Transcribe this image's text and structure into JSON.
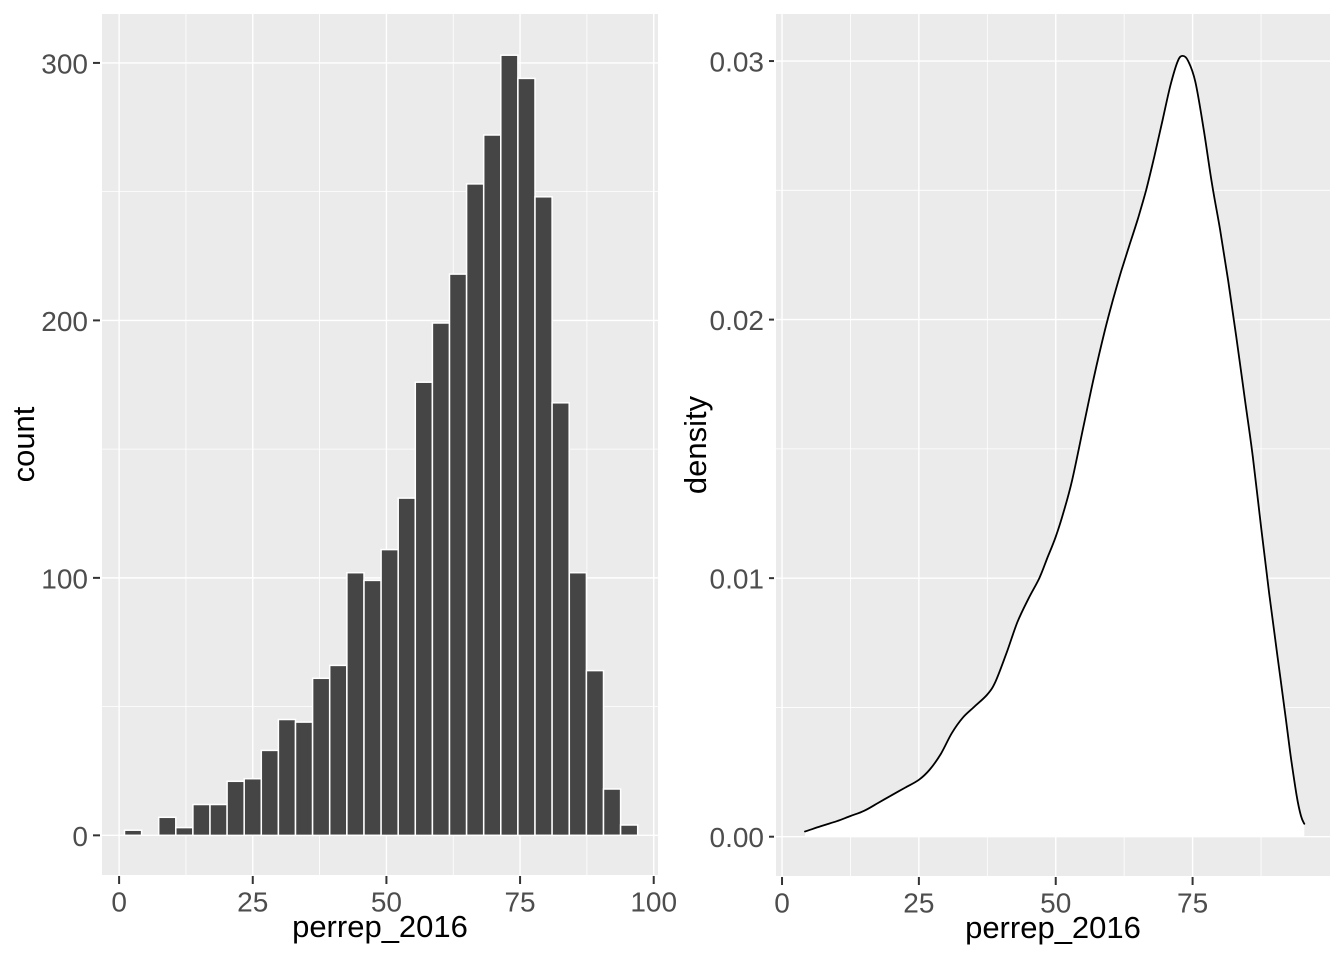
{
  "figure": {
    "kind": "ggplot2 two-panel figure",
    "background": "#FFFFFF",
    "shared_xlabel": "perrep_2016"
  },
  "colors": {
    "panel_bg": "#EBEBEB",
    "grid_major": "#FFFFFF",
    "grid_minor": "#FFFFFF",
    "bar_fill": "#454545",
    "bar_stroke": "#FFFFFF",
    "density_line": "#000000",
    "density_fill": "#FFFFFF",
    "tick_label": "#4D4D4D",
    "axis_title": "#000000",
    "tick_mark": "#333333"
  },
  "chart_data": [
    {
      "type": "bar",
      "title": "",
      "xlabel": "perrep_2016",
      "ylabel": "count",
      "legend": "none",
      "grid": "major+minor",
      "bin_start": 1.0,
      "bin_width": 3.2,
      "counts": [
        2,
        0,
        7,
        3,
        12,
        12,
        21,
        22,
        33,
        45,
        44,
        61,
        66,
        102,
        99,
        111,
        131,
        176,
        199,
        218,
        253,
        272,
        303,
        294,
        248,
        168,
        102,
        64,
        18,
        4
      ],
      "x_ticks": {
        "values": [
          0,
          25,
          50,
          75,
          100
        ],
        "labels": [
          "0",
          "25",
          "50",
          "75",
          "100"
        ]
      },
      "y_ticks": {
        "values": [
          0,
          100,
          200,
          300
        ],
        "labels": [
          "0",
          "100",
          "200",
          "300"
        ]
      },
      "xlim": [
        -3.2,
        100.8
      ],
      "ylim": [
        -15.4,
        319.0
      ]
    },
    {
      "type": "line",
      "title": "",
      "xlabel": "perrep_2016",
      "ylabel": "density",
      "legend": "none",
      "grid": "major+minor",
      "fill_under_curve": true,
      "peak": {
        "x": 73,
        "density": 0.0302
      },
      "points": [
        [
          4.2,
          0.0002
        ],
        [
          7,
          0.0004
        ],
        [
          10,
          0.0006
        ],
        [
          12.5,
          0.0008
        ],
        [
          15,
          0.001
        ],
        [
          17.5,
          0.0013
        ],
        [
          20,
          0.0016
        ],
        [
          22.5,
          0.0019
        ],
        [
          25,
          0.0022
        ],
        [
          27,
          0.0026
        ],
        [
          29,
          0.0032
        ],
        [
          31,
          0.004
        ],
        [
          33,
          0.0046
        ],
        [
          35,
          0.005
        ],
        [
          37.5,
          0.0055
        ],
        [
          39,
          0.006
        ],
        [
          41,
          0.0071
        ],
        [
          43,
          0.0083
        ],
        [
          45,
          0.0092
        ],
        [
          47,
          0.01
        ],
        [
          48.5,
          0.0108
        ],
        [
          50,
          0.0116
        ],
        [
          51.5,
          0.0126
        ],
        [
          53,
          0.0138
        ],
        [
          55,
          0.0158
        ],
        [
          57,
          0.0178
        ],
        [
          59,
          0.0196
        ],
        [
          60.5,
          0.0208
        ],
        [
          62,
          0.0219
        ],
        [
          63.5,
          0.0229
        ],
        [
          65,
          0.0239
        ],
        [
          66.5,
          0.025
        ],
        [
          68,
          0.0263
        ],
        [
          69.5,
          0.0277
        ],
        [
          71,
          0.0291
        ],
        [
          72.3,
          0.03
        ],
        [
          73.2,
          0.0302
        ],
        [
          74.2,
          0.03
        ],
        [
          75.5,
          0.0292
        ],
        [
          77,
          0.0274
        ],
        [
          78.5,
          0.0253
        ],
        [
          80,
          0.0235
        ],
        [
          81.5,
          0.0215
        ],
        [
          83,
          0.0193
        ],
        [
          84.5,
          0.017
        ],
        [
          86,
          0.0147
        ],
        [
          87.5,
          0.012
        ],
        [
          89,
          0.0094
        ],
        [
          90.5,
          0.007
        ],
        [
          92,
          0.0046
        ],
        [
          93,
          0.003
        ],
        [
          94,
          0.0016
        ],
        [
          94.8,
          0.0008
        ],
        [
          95.4,
          0.0005
        ]
      ],
      "x_ticks": {
        "values": [
          0,
          25,
          50,
          75
        ],
        "labels": [
          "0",
          "25",
          "50",
          "75"
        ]
      },
      "y_ticks": {
        "values": [
          0,
          0.01,
          0.02,
          0.03
        ],
        "labels": [
          "0.00",
          "0.01",
          "0.02",
          "0.03"
        ]
      },
      "xlim": [
        -1.1,
        100.1
      ],
      "ylim": [
        -0.00152,
        0.03182
      ]
    }
  ]
}
